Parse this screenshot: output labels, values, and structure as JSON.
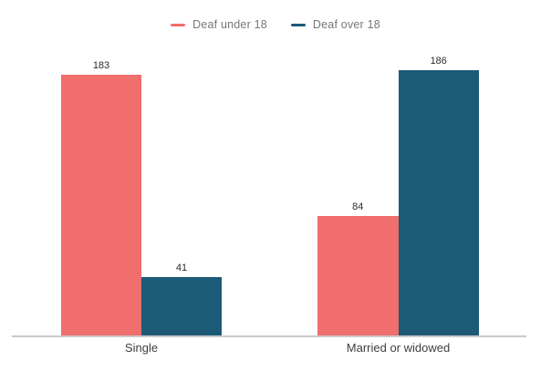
{
  "chart_data": {
    "type": "bar",
    "title": "",
    "categories": [
      "Single",
      "Married or widowed"
    ],
    "series": [
      {
        "name": "Deaf under 18",
        "color": "#f06e6c",
        "values": [
          183,
          84
        ]
      },
      {
        "name": "Deaf over 18",
        "color": "#1c5a77",
        "values": [
          41,
          186
        ]
      }
    ],
    "value_labels_shown": true,
    "ylim": [
      0,
      200
    ],
    "y_axis_shown": false,
    "grid": false,
    "legend_position": "top"
  },
  "colors": {
    "value_label": "#2b2b2b",
    "category_label": "#3f3f3f",
    "legend_text": "#76757c",
    "axis_line": "#c9c9c9",
    "background": "#ffffff"
  }
}
